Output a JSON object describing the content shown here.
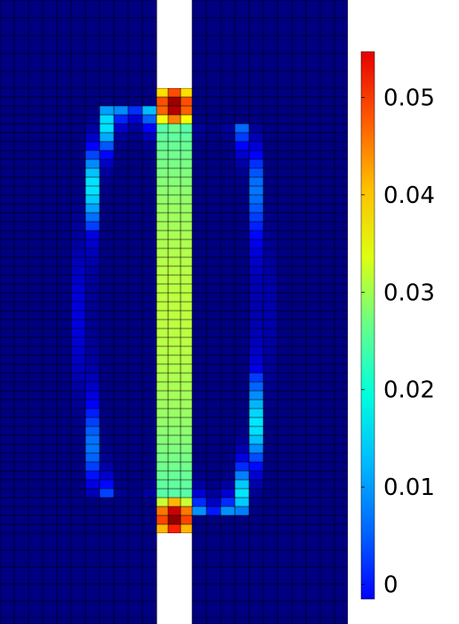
{
  "chart_data": {
    "type": "heatmap",
    "title": "",
    "xlabel": "",
    "ylabel": "",
    "colormap": "jet",
    "color_range": [
      -0.0015,
      0.0547
    ],
    "colorbar_ticks": [
      {
        "value": 0,
        "label": "0"
      },
      {
        "value": 0.01,
        "label": "0.01"
      },
      {
        "value": 0.02,
        "label": "0.02"
      },
      {
        "value": 0.03,
        "label": "0.03"
      },
      {
        "value": 0.04,
        "label": "0.04"
      },
      {
        "value": 0.05,
        "label": "0.05"
      }
    ],
    "background_value": -0.0015,
    "peak_value": 0.054,
    "central_column_value_range": [
      0.016,
      0.03
    ],
    "band_value_range": [
      0.004,
      0.014
    ],
    "colors": {
      "low": "#0000ff",
      "high": "#ff0000",
      "gap": "#ffffff",
      "mesh_lines": "#000000"
    }
  }
}
